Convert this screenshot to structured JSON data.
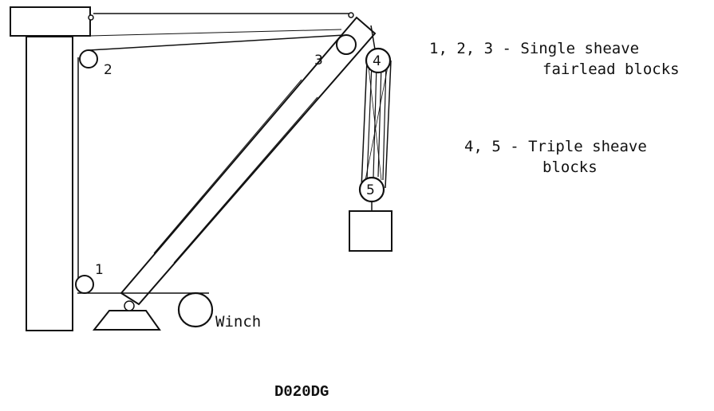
{
  "diagram": {
    "labels": {
      "block_1": "1",
      "block_2": "2",
      "block_3": "3",
      "block_4": "4",
      "block_5": "5",
      "winch": "Winch"
    },
    "legend": [
      {
        "line1": "1, 2, 3 - Single sheave",
        "line2": "fairlead blocks"
      },
      {
        "line1": "4, 5 - Triple sheave",
        "line2": "blocks"
      }
    ],
    "caption": "D020DG"
  }
}
